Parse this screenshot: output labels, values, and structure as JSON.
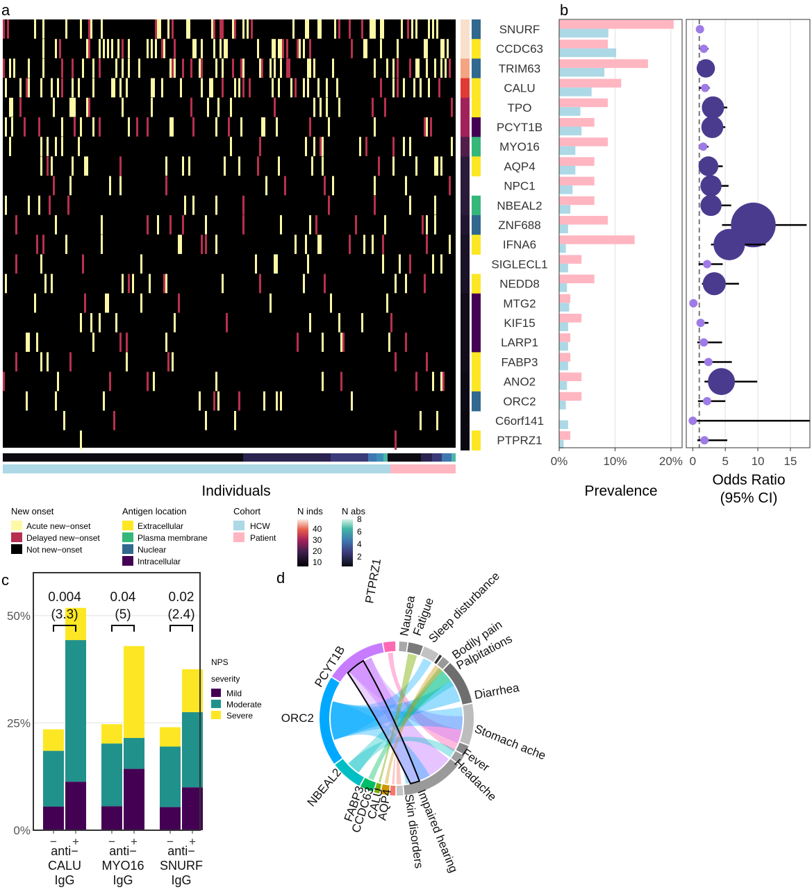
{
  "panel_labels": [
    "a",
    "b",
    "c",
    "d"
  ],
  "colors": {
    "acute": "#fdf9a6",
    "delayed": "#b8304f",
    "not_new": "#000000",
    "extracellular": "#fde725",
    "plasma_membrane": "#35b779",
    "nuclear": "#31688e",
    "intracellular": "#440154",
    "hcw": "#add8e6",
    "patient": "#ffb6c1",
    "odds_large": "#4b3b8f",
    "odds_small": "#9e7be6",
    "mild": "#440154",
    "moderate": "#21918c",
    "severe": "#fde725"
  },
  "panel_a": {
    "xlabel": "Individuals",
    "genes": [
      "SNURF",
      "CCDC63",
      "TRIM63",
      "CALU",
      "TPO",
      "PCYT1B",
      "MYO16",
      "AQP4",
      "NPC1",
      "NBEAL2",
      "ZNF688",
      "IFNA6",
      "SIGLECL1",
      "NEDD8",
      "MTG2",
      "KIF15",
      "LARP1",
      "FABP3",
      "ANO2",
      "ORC2",
      "C6orf141",
      "PTPRZ1"
    ],
    "antigen_location": [
      "Nuclear",
      "Extracellular",
      "Nuclear",
      "Extracellular",
      "Extracellular",
      "Intracellular",
      "Plasma membrane",
      "Extracellular",
      "",
      "Plasma membrane",
      "Nuclear",
      "Extracellular",
      "",
      "Extracellular",
      "Intracellular",
      "Intracellular",
      "Intracellular",
      "Extracellular",
      "Extracellular",
      "Nuclear",
      "",
      "Extracellular"
    ],
    "n_inds_col": [
      "#f9e0cc",
      "#f9e0cc",
      "#f3a481",
      "#e03b35",
      "#a1215b",
      "#a1215b",
      "#511e4b",
      "#2a1b3a",
      "#2a1b3a",
      "#2a1b3a",
      "#211630",
      "#1a1226",
      "#1a1226",
      "#1a1226",
      "#130d1b",
      "#130d1b",
      "#130d1b",
      "#130d1b",
      "#0e0a14",
      "#0e0a14",
      "#0b0810",
      "#0b0810"
    ],
    "legend": {
      "new_onset": {
        "title": "New onset",
        "items": [
          "Acute new−onset",
          "Delayed new−onset",
          "Not new−onset"
        ]
      },
      "antigen": {
        "title": "Antigen location",
        "items": [
          "Extracellular",
          "Plasma membrane",
          "Nuclear",
          "Intracellular"
        ]
      },
      "cohort": {
        "title": "Cohort",
        "items": [
          "HCW",
          "Patient"
        ]
      },
      "n_inds": {
        "title": "N inds",
        "ticks": [
          "40",
          "30",
          "20",
          "10"
        ]
      },
      "n_abs": {
        "title": "N abs",
        "ticks": [
          "8",
          "6",
          "4",
          "2"
        ]
      }
    }
  },
  "chart_data": [
    {
      "type": "bar",
      "title": "Prevalence",
      "orientation": "horizontal",
      "categories": [
        "SNURF",
        "CCDC63",
        "TRIM63",
        "CALU",
        "TPO",
        "PCYT1B",
        "MYO16",
        "AQP4",
        "NPC1",
        "NBEAL2",
        "ZNF688",
        "IFNA6",
        "SIGLECL1",
        "NEDD8",
        "MTG2",
        "KIF15",
        "LARP1",
        "FABP3",
        "ANO2",
        "ORC2",
        "C6orf141",
        "PTPRZ1"
      ],
      "series": [
        {
          "name": "Patient",
          "values": [
            20.5,
            8.7,
            15.9,
            11.1,
            8.7,
            6.3,
            8.7,
            6.3,
            6.3,
            6.3,
            8.7,
            13.5,
            4.0,
            6.3,
            2.0,
            4.0,
            2.0,
            2.0,
            4.0,
            4.0,
            0,
            2.0
          ]
        },
        {
          "name": "HCW",
          "values": [
            8.8,
            10.2,
            8.1,
            5.8,
            3.8,
            4.0,
            2.9,
            2.9,
            2.4,
            2.0,
            1.6,
            1.2,
            1.6,
            1.4,
            1.8,
            1.6,
            1.6,
            1.6,
            1.4,
            1.2,
            1.6,
            0.8
          ]
        }
      ],
      "xlim": [
        0,
        22
      ],
      "xticks": [
        "0%",
        "10%",
        "20%"
      ]
    },
    {
      "type": "scatter",
      "title": "Odds Ratio",
      "subtitle": "(95% CI)",
      "categories": [
        "SNURF",
        "CCDC63",
        "TRIM63",
        "CALU",
        "TPO",
        "PCYT1B",
        "MYO16",
        "AQP4",
        "NPC1",
        "NBEAL2",
        "ZNF688",
        "IFNA6",
        "SIGLECL1",
        "NEDD8",
        "MTG2",
        "KIF15",
        "LARP1",
        "FABP3",
        "ANO2",
        "ORC2",
        "C6orf141",
        "PTPRZ1"
      ],
      "or": [
        1.1,
        1.7,
        2.0,
        1.9,
        3.1,
        3.0,
        1.6,
        2.4,
        2.8,
        2.8,
        9.3,
        5.6,
        2.2,
        3.3,
        0.1,
        1.2,
        1.7,
        2.4,
        4.4,
        2.2,
        0,
        1.8
      ],
      "ci_low": [
        0.9,
        1.0,
        1.0,
        1.0,
        1.5,
        1.5,
        1.0,
        1.0,
        1.2,
        1.2,
        4.5,
        2.8,
        0.9,
        1.4,
        0.1,
        0.9,
        0.7,
        0.8,
        1.8,
        0.8,
        0,
        0.7
      ],
      "ci_high": [
        1.2,
        2.4,
        2.2,
        2.6,
        5.3,
        5.0,
        2.4,
        4.6,
        5.5,
        5.9,
        17.5,
        11.2,
        4.6,
        7.1,
        0.2,
        2.4,
        4.5,
        6.0,
        9.9,
        5.0,
        18.5,
        5.3
      ],
      "large": [
        false,
        false,
        true,
        false,
        true,
        true,
        false,
        true,
        true,
        true,
        true,
        true,
        false,
        true,
        false,
        false,
        false,
        false,
        true,
        false,
        false,
        false
      ],
      "xlim": [
        -1,
        18
      ],
      "xticks": [
        0,
        5,
        10,
        15
      ],
      "reference_line": 1
    },
    {
      "type": "bar",
      "stacked": true,
      "ylabel": "",
      "yticks": [
        "0%",
        "25%",
        "50%"
      ],
      "ylim": [
        0,
        60
      ],
      "groups": [
        {
          "label_lines": [
            "anti−",
            "CALU",
            "IgG"
          ],
          "pvalue": "0.004",
          "or_text": "(3.3)",
          "bars": [
            {
              "x": "−",
              "mild": 5.5,
              "moderate": 13.0,
              "severe": 5.0
            },
            {
              "x": "+",
              "mild": 11.3,
              "moderate": 33.0,
              "severe": 7.5
            }
          ]
        },
        {
          "label_lines": [
            "anti−",
            "MYO16",
            "IgG"
          ],
          "pvalue": "0.04",
          "or_text": "(5)",
          "bars": [
            {
              "x": "−",
              "mild": 5.6,
              "moderate": 14.6,
              "severe": 4.5
            },
            {
              "x": "+",
              "mild": 14.3,
              "moderate": 7.2,
              "severe": 21.4
            }
          ]
        },
        {
          "label_lines": [
            "anti−",
            "SNURF",
            "IgG"
          ],
          "pvalue": "0.02",
          "or_text": "(2.4)",
          "bars": [
            {
              "x": "−",
              "mild": 5.4,
              "moderate": 14.1,
              "severe": 4.5
            },
            {
              "x": "+",
              "mild": 10.0,
              "moderate": 17.5,
              "severe": 10.0
            }
          ]
        }
      ],
      "legend": {
        "title_lines": [
          "NPS",
          "severity"
        ],
        "items": [
          "Mild",
          "Moderate",
          "Severe"
        ]
      }
    },
    {
      "type": "chord",
      "antibodies": [
        {
          "name": "PTPRZ1",
          "color": "#ff69b4"
        },
        {
          "name": "PCYT1B",
          "color": "#c77cff"
        },
        {
          "name": "ORC2",
          "color": "#00a9ff"
        },
        {
          "name": "NBEAL2",
          "color": "#00bfc4"
        },
        {
          "name": "FABP3",
          "color": "#00be67"
        },
        {
          "name": "CCDC63",
          "color": "#7cae00"
        },
        {
          "name": "CALU",
          "color": "#cd9600"
        },
        {
          "name": "AQP4",
          "color": "#f8766d"
        }
      ],
      "symptoms": [
        "Nausea",
        "Fatigue",
        "Sleep disturbance",
        "Bodily pain",
        "Palpitations",
        "Diarrhea",
        "Stomach ache",
        "Fever",
        "Headache",
        "Impaired hearing",
        "Skin disorders"
      ]
    }
  ]
}
